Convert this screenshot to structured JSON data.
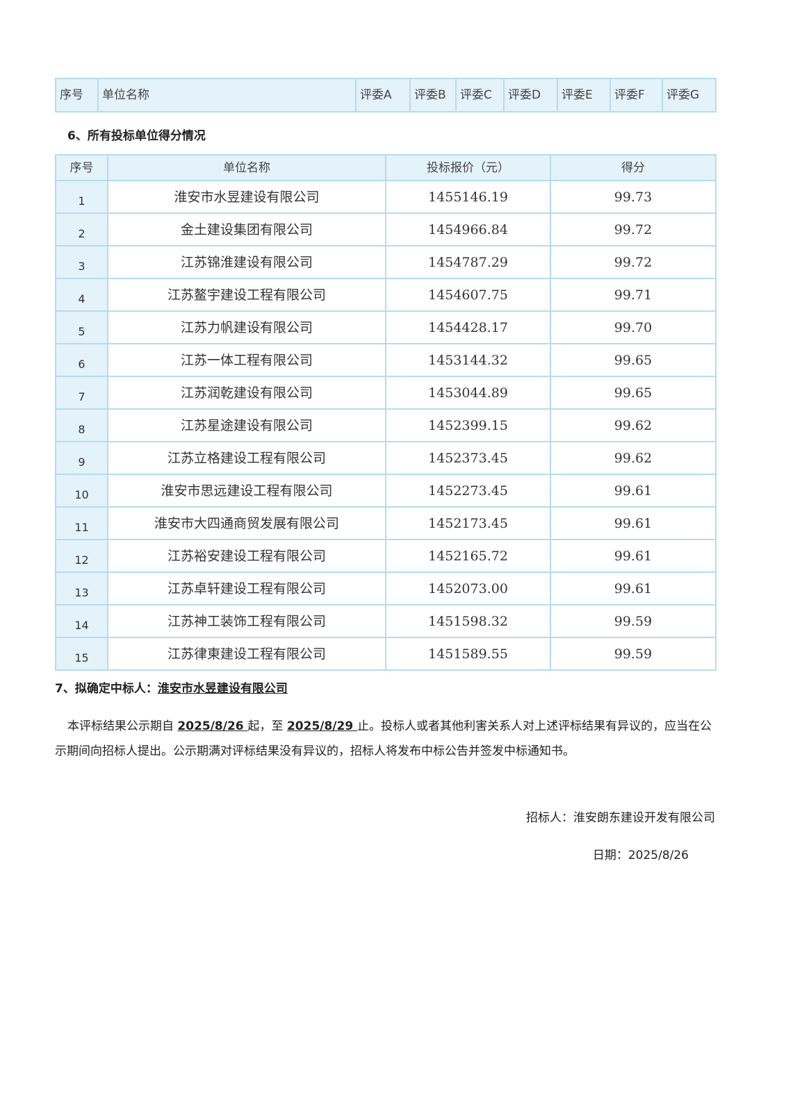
{
  "top_table": {
    "headers": [
      "序号",
      "单位名称",
      "评委A",
      "评委B",
      "评委C",
      "评委D",
      "评委E",
      "评委F",
      "评委G"
    ]
  },
  "section6": {
    "title": "6、所有投标单位得分情况",
    "headers": [
      "序号",
      "单位名称",
      "投标报价（元）",
      "得分"
    ],
    "rows": [
      [
        "1",
        "淮安市水昱建设有限公司",
        "1455146.19",
        "99.73"
      ],
      [
        "2",
        "金土建设集团有限公司",
        "1454966.84",
        "99.72"
      ],
      [
        "3",
        "江苏锦淮建设有限公司",
        "1454787.29",
        "99.72"
      ],
      [
        "4",
        "江苏鳌宇建设工程有限公司",
        "1454607.75",
        "99.71"
      ],
      [
        "5",
        "江苏力帆建设有限公司",
        "1454428.17",
        "99.70"
      ],
      [
        "6",
        "江苏一体工程有限公司",
        "1453144.32",
        "99.65"
      ],
      [
        "7",
        "江苏润乾建设有限公司",
        "1453044.89",
        "99.65"
      ],
      [
        "8",
        "江苏星途建设有限公司",
        "1452399.15",
        "99.62"
      ],
      [
        "9",
        "江苏立格建设工程有限公司",
        "1452373.45",
        "99.62"
      ],
      [
        "10",
        "淮安市思远建设工程有限公司",
        "1452273.45",
        "99.61"
      ],
      [
        "11",
        "淮安市大四通商贸发展有限公司",
        "1452173.45",
        "99.61"
      ],
      [
        "12",
        "江苏裕安建设工程有限公司",
        "1452165.72",
        "99.61"
      ],
      [
        "13",
        "江苏卓轩建设工程有限公司",
        "1452073.00",
        "99.61"
      ],
      [
        "14",
        "江苏神工装饰工程有限公司",
        "1451598.32",
        "99.59"
      ],
      [
        "15",
        "江苏律東建设工程有限公司",
        "1451589.55",
        "99.59"
      ]
    ]
  },
  "section7": {
    "label": "7、拟确定中标人：",
    "winner": "淮安市水昱建设有限公司"
  },
  "notice": {
    "p1": "本评标结果公示期自 ",
    "start": "2025/8/26 ",
    "p2": "起，至 ",
    "end": "2025/8/29 ",
    "p3": "止。投标人或者其他利害关系人对上述评标结果有异议的，应当在公示期间向招标人提出。公示期满对评标结果没有异议的，招标人将发布中标公告并签发中标通知书。"
  },
  "signature": "招标人：淮安朗东建设开发有限公司",
  "date": "日期：2025/8/26"
}
